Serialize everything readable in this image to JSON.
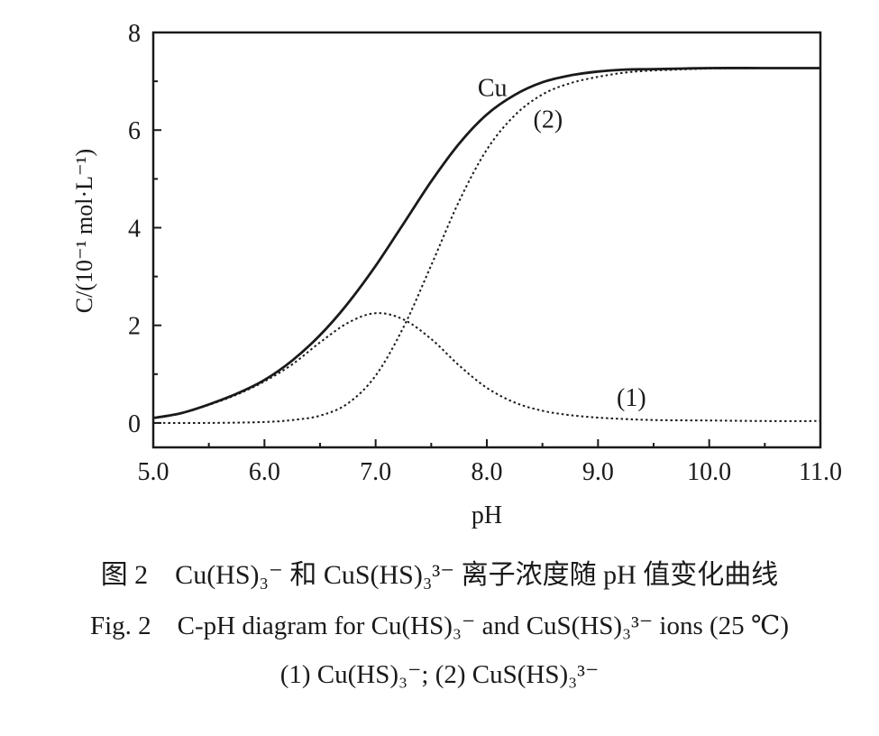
{
  "chart_data": {
    "type": "line",
    "xlabel": "pH",
    "ylabel": "C/(10⁻¹ mol·L⁻¹)",
    "xlim": [
      5.0,
      11.0
    ],
    "ylim": [
      -0.5,
      8
    ],
    "xticks": [
      5.0,
      6.0,
      7.0,
      8.0,
      9.0,
      10.0,
      11.0
    ],
    "xtick_labels": [
      "5.0",
      "6.0",
      "7.0",
      "8.0",
      "9.0",
      "10.0",
      "11.0"
    ],
    "yticks": [
      0,
      2,
      4,
      6,
      8
    ],
    "ytick_labels": [
      "0",
      "2",
      "4",
      "6",
      "8"
    ],
    "grid": false,
    "series": [
      {
        "name": "Cu",
        "style": "solid",
        "color": "#1a1a1a",
        "x": [
          5.0,
          5.25,
          5.5,
          5.75,
          6.0,
          6.25,
          6.5,
          6.75,
          7.0,
          7.25,
          7.5,
          7.75,
          8.0,
          8.25,
          8.5,
          8.75,
          9.0,
          9.25,
          9.5,
          10.0,
          10.5,
          11.0
        ],
        "y": [
          0.1,
          0.2,
          0.38,
          0.6,
          0.88,
          1.28,
          1.8,
          2.45,
          3.22,
          4.08,
          4.95,
          5.72,
          6.32,
          6.72,
          6.98,
          7.12,
          7.2,
          7.24,
          7.25,
          7.27,
          7.27,
          7.27
        ]
      },
      {
        "name": "(1)",
        "style": "dotted",
        "color": "#1a1a1a",
        "x": [
          5.0,
          5.25,
          5.5,
          5.75,
          6.0,
          6.25,
          6.5,
          6.75,
          7.0,
          7.25,
          7.5,
          7.75,
          8.0,
          8.25,
          8.5,
          8.75,
          9.0,
          9.25,
          9.5,
          10.0,
          10.5,
          11.0
        ],
        "y": [
          0.1,
          0.2,
          0.37,
          0.58,
          0.85,
          1.2,
          1.65,
          2.05,
          2.25,
          2.12,
          1.72,
          1.18,
          0.72,
          0.42,
          0.25,
          0.16,
          0.11,
          0.08,
          0.06,
          0.05,
          0.04,
          0.04
        ]
      },
      {
        "name": "(2)",
        "style": "dotted",
        "color": "#1a1a1a",
        "x": [
          5.0,
          5.5,
          6.0,
          6.25,
          6.5,
          6.75,
          7.0,
          7.25,
          7.5,
          7.75,
          8.0,
          8.25,
          8.5,
          8.75,
          9.0,
          9.25,
          9.5,
          10.0,
          10.5,
          11.0
        ],
        "y": [
          0.0,
          0.0,
          0.02,
          0.06,
          0.15,
          0.4,
          0.97,
          1.96,
          3.23,
          4.54,
          5.6,
          6.3,
          6.73,
          6.96,
          7.09,
          7.18,
          7.22,
          7.26,
          7.27,
          7.27
        ]
      }
    ],
    "annotations": [
      {
        "text": "Cu",
        "x": 8.05,
        "y": 6.7
      },
      {
        "text": "(2)",
        "x": 8.55,
        "y": 6.05
      },
      {
        "text": "(1)",
        "x": 9.3,
        "y": 0.35
      }
    ]
  },
  "caption": {
    "chinese": "图 2　Cu(HS)₃⁻ 和 CuS(HS)₃³⁻ 离子浓度随 pH 值变化曲线",
    "english": "Fig. 2　C-pH diagram for Cu(HS)₃⁻ and CuS(HS)₃³⁻ ions (25 ℃)",
    "legend": "(1) Cu(HS)₃⁻; (2) CuS(HS)₃³⁻"
  }
}
